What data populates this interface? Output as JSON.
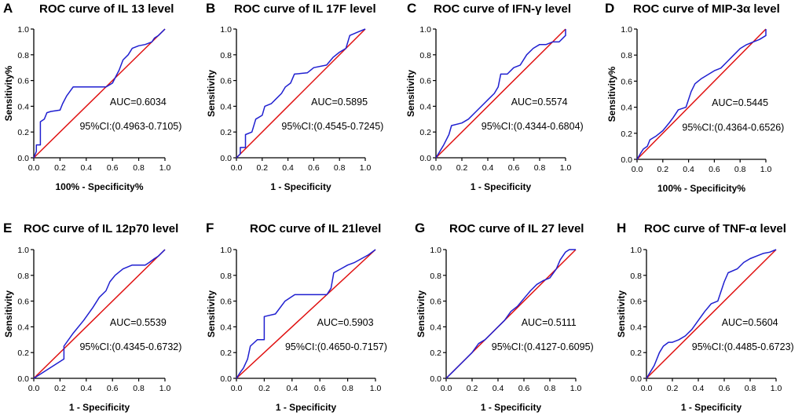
{
  "chart_data": [
    {
      "type": "line",
      "letter": "A",
      "title": "ROC curve of IL 13 level",
      "xlabel": "100% - Specificity%",
      "ylabel": "Sensitivity%",
      "xlim": [
        0,
        1
      ],
      "ylim": [
        0,
        1
      ],
      "xticks": [
        "0.0",
        "0.2",
        "0.4",
        "0.6",
        "0.8",
        "1.0"
      ],
      "yticks": [
        "0.0",
        "0.2",
        "0.4",
        "0.6",
        "0.8",
        "1.0"
      ],
      "auc": "AUC=0.6034",
      "ci": "95%CI:(0.4963-0.7105)",
      "series": [
        {
          "name": "ROC",
          "color": "#1f1fd0",
          "points": [
            [
              0,
              0
            ],
            [
              0.02,
              0.05
            ],
            [
              0.02,
              0.1
            ],
            [
              0.05,
              0.1
            ],
            [
              0.05,
              0.28
            ],
            [
              0.08,
              0.3
            ],
            [
              0.1,
              0.35
            ],
            [
              0.13,
              0.36
            ],
            [
              0.2,
              0.37
            ],
            [
              0.22,
              0.42
            ],
            [
              0.25,
              0.48
            ],
            [
              0.3,
              0.55
            ],
            [
              0.55,
              0.55
            ],
            [
              0.6,
              0.58
            ],
            [
              0.63,
              0.64
            ],
            [
              0.65,
              0.68
            ],
            [
              0.68,
              0.76
            ],
            [
              0.72,
              0.8
            ],
            [
              0.75,
              0.85
            ],
            [
              0.8,
              0.87
            ],
            [
              0.85,
              0.88
            ],
            [
              0.9,
              0.9
            ],
            [
              0.92,
              0.93
            ],
            [
              0.95,
              0.95
            ],
            [
              1,
              1
            ]
          ]
        },
        {
          "name": "Reference",
          "color": "#e01010",
          "points": [
            [
              0,
              0
            ],
            [
              1,
              1
            ]
          ]
        }
      ]
    },
    {
      "type": "line",
      "letter": "B",
      "title": "ROC curve of IL 17F level",
      "xlabel": "1 - Specificity",
      "ylabel": "Sensitivity",
      "xlim": [
        0,
        1
      ],
      "ylim": [
        0,
        1
      ],
      "xticks": [
        "0.0",
        "0.2",
        "0.4",
        "0.6",
        "0.8",
        "1.0"
      ],
      "yticks": [
        "0.0",
        "0.2",
        "0.4",
        "0.6",
        "0.8",
        "1.0"
      ],
      "auc": "AUC=0.5895",
      "ci": "95%CI:(0.4545-0.7245)",
      "series": [
        {
          "name": "ROC",
          "color": "#1f1fd0",
          "points": [
            [
              0,
              0
            ],
            [
              0.03,
              0.03
            ],
            [
              0.03,
              0.08
            ],
            [
              0.07,
              0.08
            ],
            [
              0.07,
              0.18
            ],
            [
              0.12,
              0.2
            ],
            [
              0.15,
              0.3
            ],
            [
              0.2,
              0.33
            ],
            [
              0.22,
              0.4
            ],
            [
              0.27,
              0.42
            ],
            [
              0.3,
              0.45
            ],
            [
              0.35,
              0.5
            ],
            [
              0.38,
              0.55
            ],
            [
              0.42,
              0.58
            ],
            [
              0.45,
              0.65
            ],
            [
              0.55,
              0.66
            ],
            [
              0.6,
              0.7
            ],
            [
              0.7,
              0.72
            ],
            [
              0.75,
              0.78
            ],
            [
              0.8,
              0.82
            ],
            [
              0.85,
              0.85
            ],
            [
              0.88,
              0.95
            ],
            [
              0.95,
              0.98
            ],
            [
              1,
              1
            ]
          ]
        },
        {
          "name": "Reference",
          "color": "#e01010",
          "points": [
            [
              0,
              0
            ],
            [
              1,
              1
            ]
          ]
        }
      ]
    },
    {
      "type": "line",
      "letter": "C",
      "title": "ROC curve of IFN-γ level",
      "xlabel": "1 - Specificity",
      "ylabel": "Sensitivity",
      "xlim": [
        0,
        1
      ],
      "ylim": [
        0,
        1
      ],
      "xticks": [
        "0.0",
        "0.2",
        "0.4",
        "0.6",
        "0.8",
        "1.0"
      ],
      "yticks": [
        "0.0",
        "0.2",
        "0.4",
        "0.6",
        "0.8",
        "1.0"
      ],
      "auc": "AUC=0.5574",
      "ci": "95%CI:(0.4344-0.6804)",
      "series": [
        {
          "name": "ROC",
          "color": "#1f1fd0",
          "points": [
            [
              0,
              0
            ],
            [
              0.03,
              0.05
            ],
            [
              0.06,
              0.1
            ],
            [
              0.1,
              0.18
            ],
            [
              0.12,
              0.25
            ],
            [
              0.2,
              0.27
            ],
            [
              0.25,
              0.3
            ],
            [
              0.3,
              0.35
            ],
            [
              0.35,
              0.4
            ],
            [
              0.4,
              0.45
            ],
            [
              0.45,
              0.5
            ],
            [
              0.48,
              0.55
            ],
            [
              0.5,
              0.65
            ],
            [
              0.55,
              0.65
            ],
            [
              0.6,
              0.7
            ],
            [
              0.65,
              0.72
            ],
            [
              0.7,
              0.8
            ],
            [
              0.75,
              0.85
            ],
            [
              0.8,
              0.88
            ],
            [
              0.85,
              0.88
            ],
            [
              0.9,
              0.9
            ],
            [
              0.95,
              0.9
            ],
            [
              1,
              0.95
            ],
            [
              1,
              1
            ]
          ]
        },
        {
          "name": "Reference",
          "color": "#e01010",
          "points": [
            [
              0,
              0
            ],
            [
              1,
              1
            ]
          ]
        }
      ]
    },
    {
      "type": "line",
      "letter": "D",
      "title": "ROC curve of MIP-3α level",
      "xlabel": "100% - Specificity%",
      "ylabel": "Sensitivity%",
      "xlim": [
        0,
        1
      ],
      "ylim": [
        0,
        1
      ],
      "xticks": [
        "0.0",
        "0.2",
        "0.4",
        "0.6",
        "0.8",
        "1.0"
      ],
      "yticks": [
        "0.0",
        "0.2",
        "0.4",
        "0.6",
        "0.8",
        "1.0"
      ],
      "auc": "AUC=0.5445",
      "ci": "95%CI:(0.4364-0.6526)",
      "series": [
        {
          "name": "ROC",
          "color": "#1f1fd0",
          "points": [
            [
              0,
              0
            ],
            [
              0.03,
              0.05
            ],
            [
              0.05,
              0.08
            ],
            [
              0.08,
              0.1
            ],
            [
              0.1,
              0.15
            ],
            [
              0.15,
              0.18
            ],
            [
              0.2,
              0.22
            ],
            [
              0.25,
              0.28
            ],
            [
              0.28,
              0.32
            ],
            [
              0.32,
              0.38
            ],
            [
              0.38,
              0.4
            ],
            [
              0.42,
              0.52
            ],
            [
              0.45,
              0.58
            ],
            [
              0.5,
              0.62
            ],
            [
              0.55,
              0.65
            ],
            [
              0.6,
              0.68
            ],
            [
              0.65,
              0.7
            ],
            [
              0.7,
              0.75
            ],
            [
              0.75,
              0.8
            ],
            [
              0.8,
              0.85
            ],
            [
              0.85,
              0.88
            ],
            [
              0.9,
              0.9
            ],
            [
              0.95,
              0.92
            ],
            [
              1,
              0.95
            ],
            [
              1,
              1
            ]
          ]
        },
        {
          "name": "Reference",
          "color": "#e01010",
          "points": [
            [
              0,
              0
            ],
            [
              1,
              1
            ]
          ]
        }
      ]
    },
    {
      "type": "line",
      "letter": "E",
      "title": "ROC curve of IL 12p70 level",
      "xlabel": "1 - Specificity",
      "ylabel": "Sensitivity",
      "xlim": [
        0,
        1
      ],
      "ylim": [
        0,
        1
      ],
      "xticks": [
        "0.0",
        "0.2",
        "0.4",
        "0.6",
        "0.8",
        "1.0"
      ],
      "yticks": [
        "0.0",
        "0.2",
        "0.4",
        "0.6",
        "0.8",
        "1.0"
      ],
      "auc": "AUC=0.5539",
      "ci": "95%CI:(0.4345-0.6732)",
      "series": [
        {
          "name": "ROC",
          "color": "#1f1fd0",
          "points": [
            [
              0,
              0
            ],
            [
              0.23,
              0.15
            ],
            [
              0.23,
              0.25
            ],
            [
              0.3,
              0.35
            ],
            [
              0.38,
              0.45
            ],
            [
              0.45,
              0.55
            ],
            [
              0.5,
              0.63
            ],
            [
              0.55,
              0.68
            ],
            [
              0.58,
              0.75
            ],
            [
              0.62,
              0.8
            ],
            [
              0.68,
              0.85
            ],
            [
              0.75,
              0.88
            ],
            [
              0.85,
              0.88
            ],
            [
              0.88,
              0.9
            ],
            [
              0.92,
              0.93
            ],
            [
              0.95,
              0.95
            ],
            [
              1,
              1
            ]
          ]
        },
        {
          "name": "Reference",
          "color": "#e01010",
          "points": [
            [
              0,
              0
            ],
            [
              1,
              1
            ]
          ]
        }
      ]
    },
    {
      "type": "line",
      "letter": "F",
      "title": "ROC curve of IL 21level",
      "xlabel": "1 - Specificity",
      "ylabel": "Sensitivity",
      "xlim": [
        0,
        1
      ],
      "ylim": [
        0,
        1
      ],
      "xticks": [
        "0.0",
        "0.2",
        "0.4",
        "0.6",
        "0.8",
        "1.0"
      ],
      "yticks": [
        "0.0",
        "0.2",
        "0.4",
        "0.6",
        "0.8",
        "1.0"
      ],
      "auc": "AUC=0.5903",
      "ci": "95%CI:(0.4650-0.7157)",
      "series": [
        {
          "name": "ROC",
          "color": "#1f1fd0",
          "points": [
            [
              0,
              0
            ],
            [
              0.03,
              0.05
            ],
            [
              0.05,
              0.08
            ],
            [
              0.08,
              0.15
            ],
            [
              0.1,
              0.25
            ],
            [
              0.15,
              0.3
            ],
            [
              0.2,
              0.3
            ],
            [
              0.2,
              0.48
            ],
            [
              0.28,
              0.5
            ],
            [
              0.35,
              0.6
            ],
            [
              0.42,
              0.65
            ],
            [
              0.65,
              0.65
            ],
            [
              0.68,
              0.7
            ],
            [
              0.7,
              0.82
            ],
            [
              0.75,
              0.85
            ],
            [
              0.8,
              0.88
            ],
            [
              0.85,
              0.9
            ],
            [
              0.9,
              0.93
            ],
            [
              0.95,
              0.96
            ],
            [
              1,
              1
            ]
          ]
        },
        {
          "name": "Reference",
          "color": "#e01010",
          "points": [
            [
              0,
              0
            ],
            [
              1,
              1
            ]
          ]
        }
      ]
    },
    {
      "type": "line",
      "letter": "G",
      "title": "ROC curve of IL 27 level",
      "xlabel": "1 - Specificity",
      "ylabel": "Sensitivity",
      "xlim": [
        0,
        1
      ],
      "ylim": [
        0,
        1
      ],
      "xticks": [
        "0.0",
        "0.2",
        "0.4",
        "0.6",
        "0.8",
        "1.0"
      ],
      "yticks": [
        "0.0",
        "0.2",
        "0.4",
        "0.6",
        "0.8",
        "1.0"
      ],
      "auc": "AUC=0.5111",
      "ci": "95%CI:(0.4127-0.6095)",
      "series": [
        {
          "name": "ROC",
          "color": "#1f1fd0",
          "points": [
            [
              0,
              0
            ],
            [
              0.05,
              0.05
            ],
            [
              0.1,
              0.1
            ],
            [
              0.15,
              0.15
            ],
            [
              0.2,
              0.2
            ],
            [
              0.25,
              0.27
            ],
            [
              0.3,
              0.3
            ],
            [
              0.35,
              0.35
            ],
            [
              0.4,
              0.4
            ],
            [
              0.45,
              0.45
            ],
            [
              0.5,
              0.52
            ],
            [
              0.55,
              0.56
            ],
            [
              0.6,
              0.62
            ],
            [
              0.65,
              0.68
            ],
            [
              0.7,
              0.73
            ],
            [
              0.75,
              0.76
            ],
            [
              0.8,
              0.78
            ],
            [
              0.85,
              0.85
            ],
            [
              0.88,
              0.92
            ],
            [
              0.92,
              0.98
            ],
            [
              0.95,
              1
            ],
            [
              1,
              1
            ]
          ]
        },
        {
          "name": "Reference",
          "color": "#e01010",
          "points": [
            [
              0,
              0
            ],
            [
              1,
              1
            ]
          ]
        }
      ]
    },
    {
      "type": "line",
      "letter": "H",
      "title": "ROC curve of TNF-α level",
      "xlabel": "1 - Specificity",
      "ylabel": "Sensitivity",
      "xlim": [
        0,
        1
      ],
      "ylim": [
        0,
        1
      ],
      "xticks": [
        "0.0",
        "0.2",
        "0.4",
        "0.6",
        "0.8",
        "1.0"
      ],
      "yticks": [
        "0.0",
        "0.2",
        "0.4",
        "0.6",
        "0.8",
        "1.0"
      ],
      "auc": "AUC=0.5604",
      "ci": "95%CI:(0.4485-0.6723)",
      "series": [
        {
          "name": "ROC",
          "color": "#1f1fd0",
          "points": [
            [
              0,
              0
            ],
            [
              0.03,
              0.05
            ],
            [
              0.06,
              0.1
            ],
            [
              0.1,
              0.2
            ],
            [
              0.13,
              0.25
            ],
            [
              0.17,
              0.28
            ],
            [
              0.2,
              0.28
            ],
            [
              0.25,
              0.3
            ],
            [
              0.3,
              0.33
            ],
            [
              0.35,
              0.38
            ],
            [
              0.4,
              0.45
            ],
            [
              0.45,
              0.52
            ],
            [
              0.5,
              0.58
            ],
            [
              0.55,
              0.6
            ],
            [
              0.6,
              0.75
            ],
            [
              0.63,
              0.82
            ],
            [
              0.7,
              0.85
            ],
            [
              0.75,
              0.9
            ],
            [
              0.8,
              0.93
            ],
            [
              0.85,
              0.95
            ],
            [
              0.9,
              0.97
            ],
            [
              0.95,
              0.98
            ],
            [
              1,
              1
            ]
          ]
        },
        {
          "name": "Reference",
          "color": "#e01010",
          "points": [
            [
              0,
              0
            ],
            [
              1,
              1
            ]
          ]
        }
      ]
    }
  ]
}
